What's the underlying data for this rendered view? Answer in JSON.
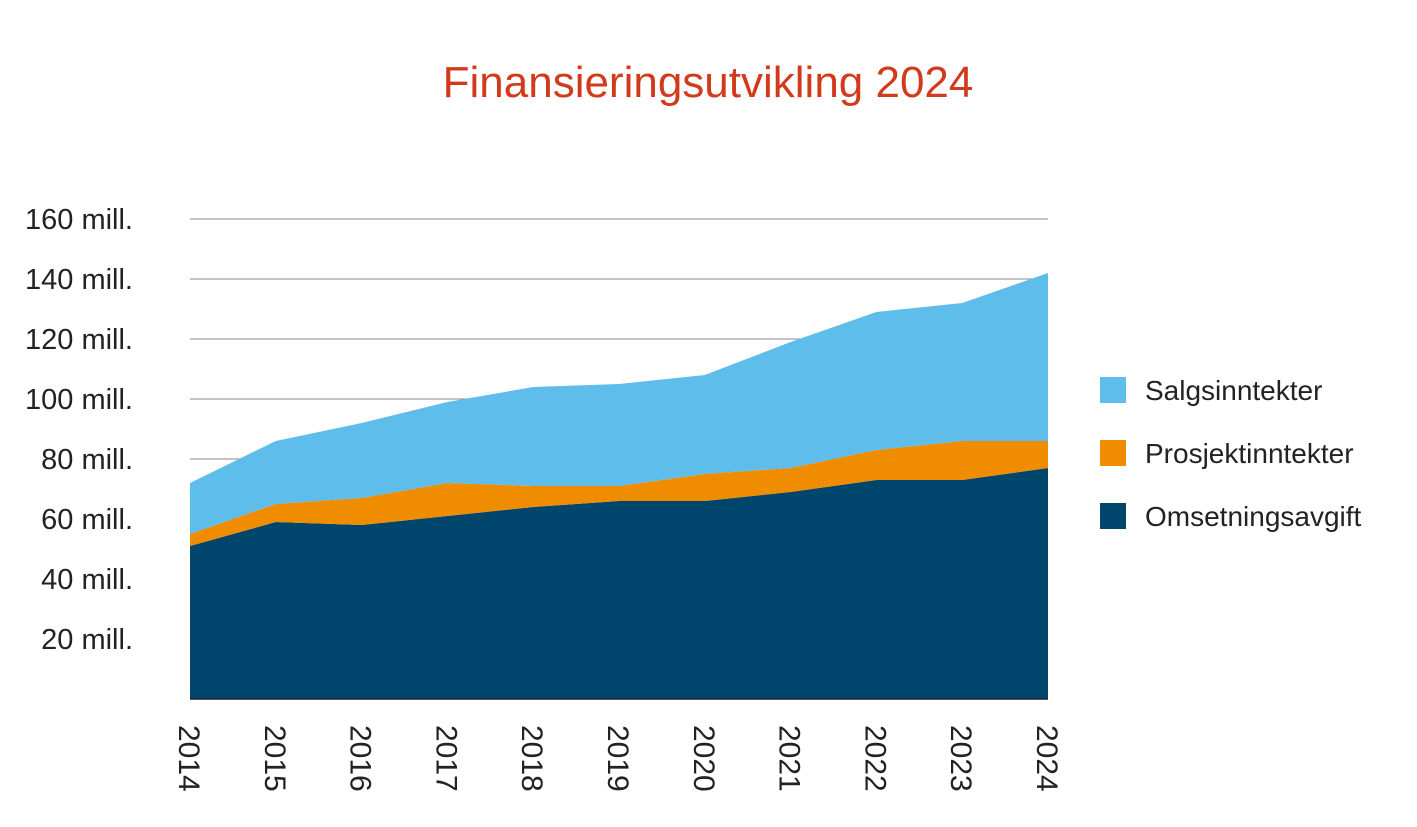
{
  "title": "Finansieringsutvikling 2024",
  "colors": {
    "title": "#d13b1c",
    "gridline": "#8a8a8a",
    "axis": "#222222",
    "text": "#222222"
  },
  "chart_data": {
    "type": "area",
    "stacked": true,
    "title": "Finansieringsutvikling 2024",
    "x": [
      "2014",
      "2015",
      "2016",
      "2017",
      "2018",
      "2019",
      "2020",
      "2021",
      "2022",
      "2023",
      "2024"
    ],
    "ylim": [
      0,
      160
    ],
    "yticks": [
      {
        "value": 20,
        "label": "20 mill."
      },
      {
        "value": 40,
        "label": "40 mill."
      },
      {
        "value": 60,
        "label": "60 mill."
      },
      {
        "value": 80,
        "label": "80 mill."
      },
      {
        "value": 100,
        "label": "100 mill."
      },
      {
        "value": 120,
        "label": "120 mill."
      },
      {
        "value": 140,
        "label": "140 mill."
      },
      {
        "value": 160,
        "label": "160 mill."
      }
    ],
    "grid": true,
    "legend_position": "right",
    "series": [
      {
        "name": "Omsetningsavgift",
        "color": "#00456b",
        "values": [
          51,
          59,
          58,
          61,
          64,
          66,
          66,
          69,
          73,
          73,
          77
        ]
      },
      {
        "name": "Prosjektinntekter",
        "color": "#f08c00",
        "values": [
          4,
          6,
          9,
          11,
          7,
          5,
          9,
          8,
          10,
          13,
          9
        ]
      },
      {
        "name": "Salgsinntekter",
        "color": "#5fbdeb",
        "values": [
          17,
          21,
          25,
          27,
          33,
          34,
          33,
          42,
          46,
          46,
          56
        ]
      }
    ],
    "legend_order": [
      "Salgsinntekter",
      "Prosjektinntekter",
      "Omsetningsavgift"
    ]
  }
}
